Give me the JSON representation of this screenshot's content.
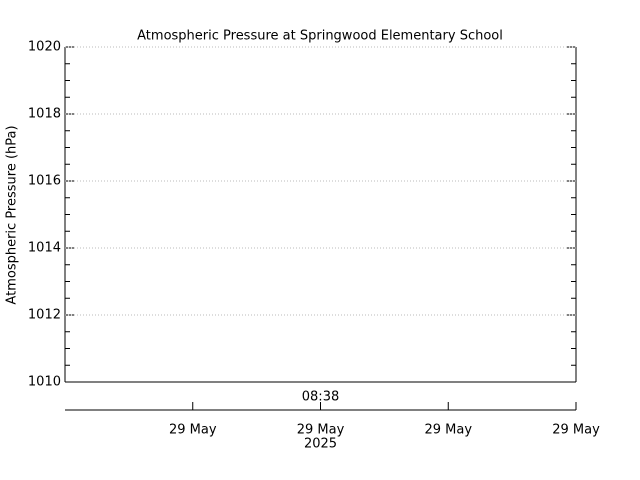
{
  "chart_data": {
    "type": "line",
    "title": "Atmospheric Pressure at Springwood Elementary School",
    "y_label": "Atmospheric Pressure (hPa)",
    "ylim": [
      1010,
      1020
    ],
    "yticks": [
      1010,
      1012,
      1014,
      1016,
      1018,
      1020
    ],
    "grid": true,
    "categories": [
      null,
      "29 May",
      "29 May",
      "29 May",
      "29 May"
    ],
    "annotations": {
      "time": "08:38",
      "year": "2025"
    },
    "series": []
  }
}
